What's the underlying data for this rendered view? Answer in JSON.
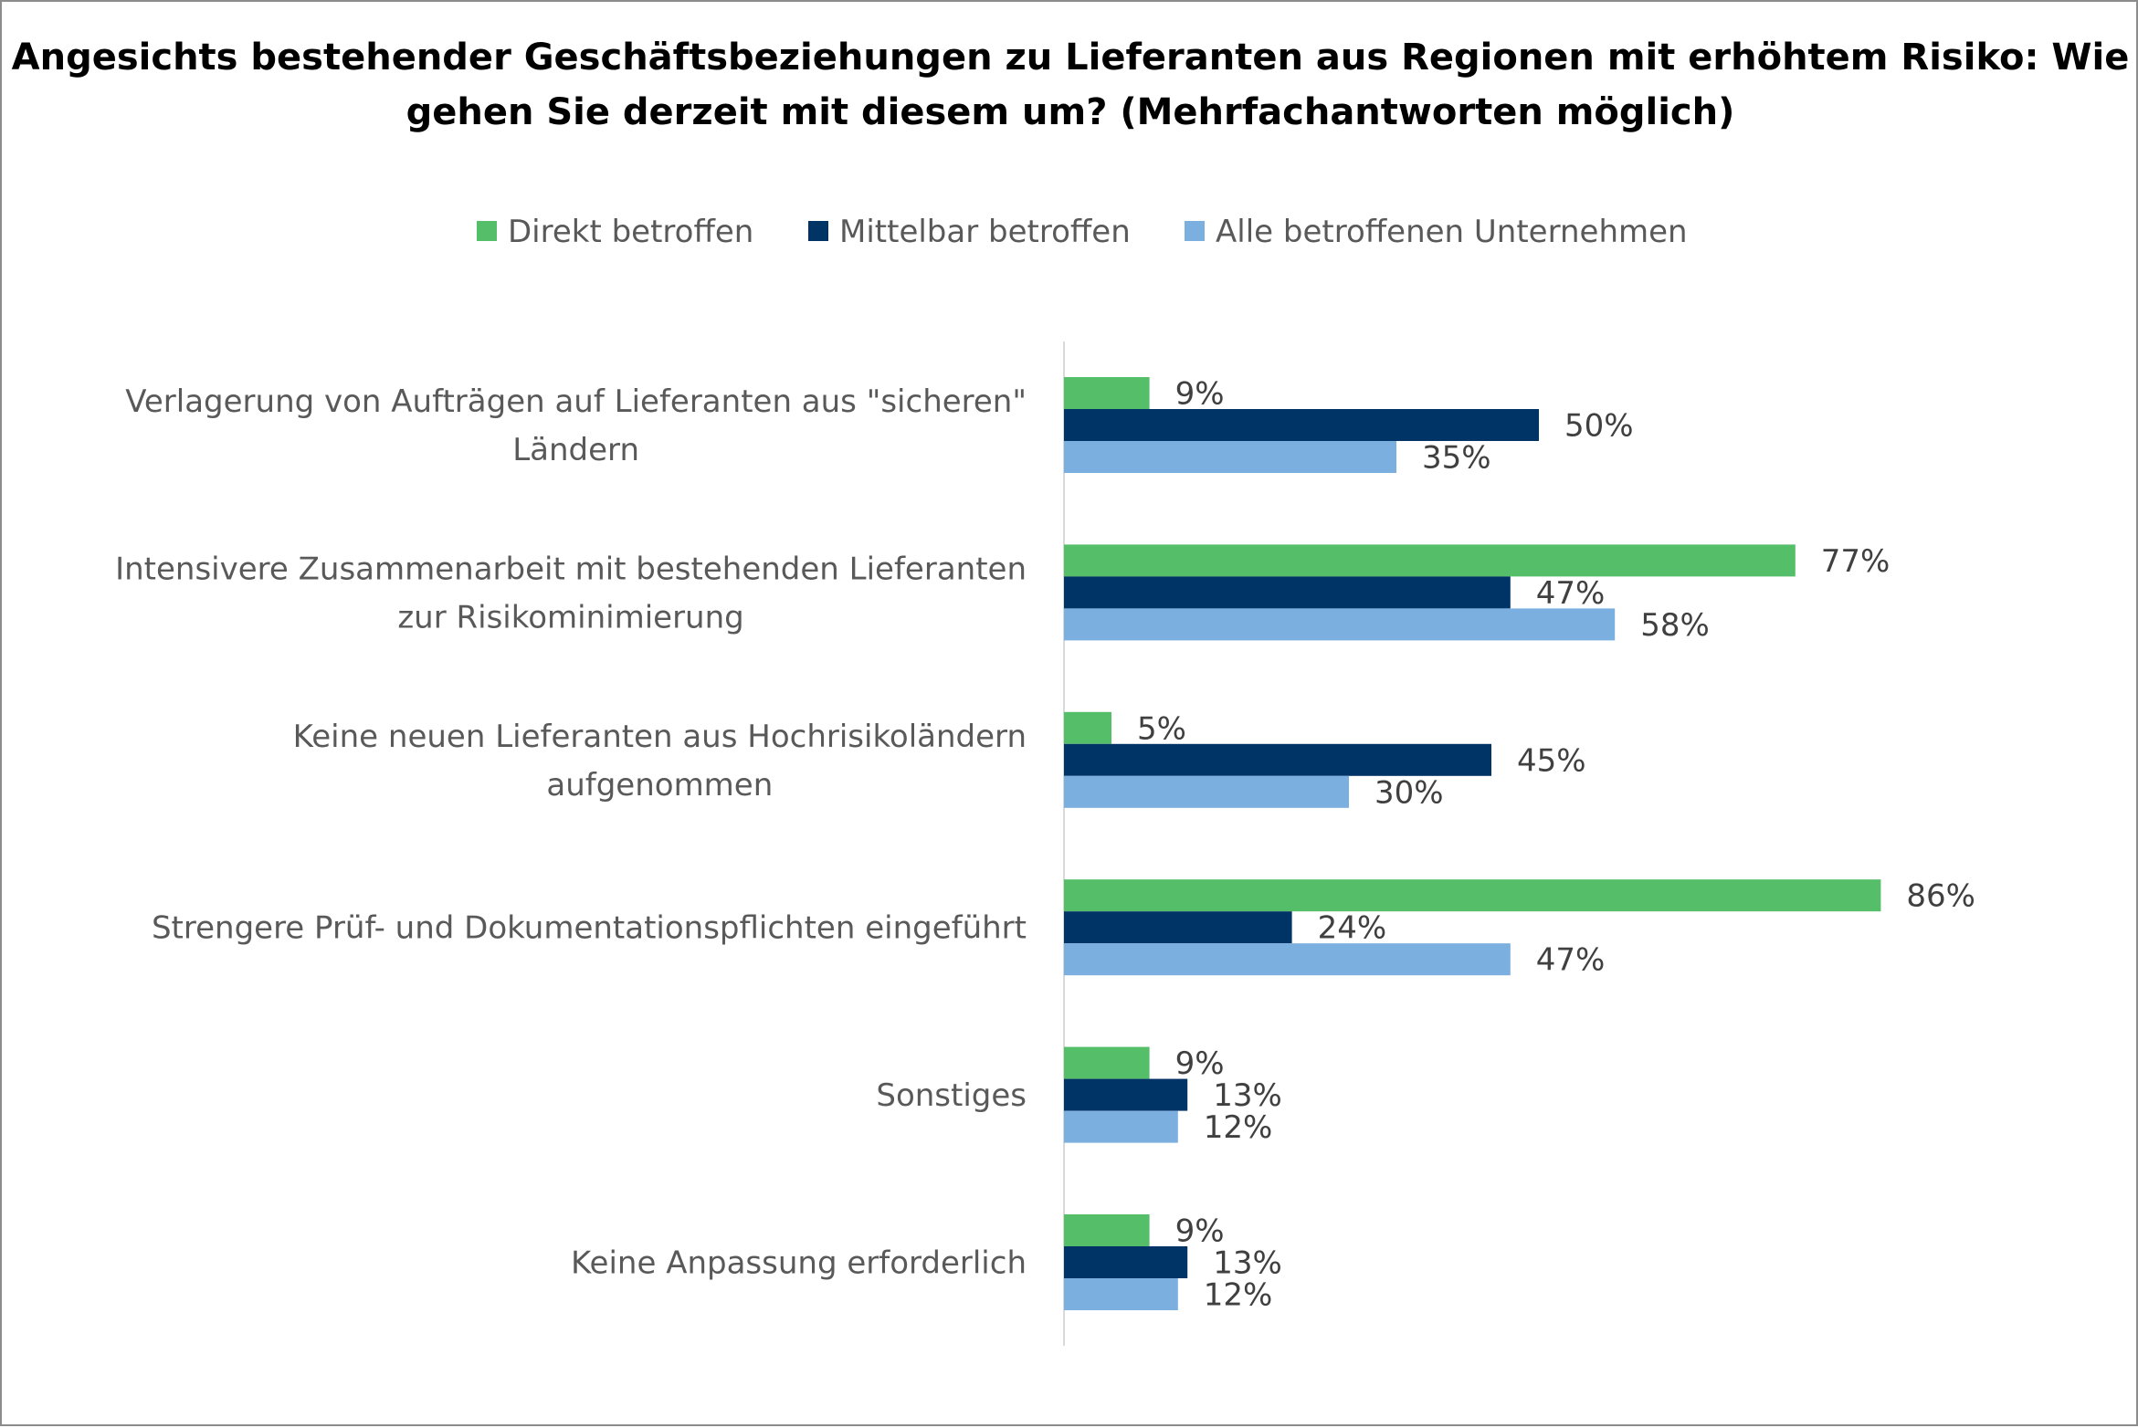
{
  "chart_data": {
    "type": "bar",
    "orientation": "horizontal",
    "title_lines": [
      "Angesichts bestehender Geschäftsbeziehungen zu Lieferanten aus Regionen mit erhöhtem Risiko: Wie",
      "gehen Sie derzeit mit diesem um? (Mehrfachantworten möglich)"
    ],
    "categories": [
      [
        "Verlagerung von Aufträgen auf Lieferanten aus \"sicheren\"",
        "Ländern"
      ],
      [
        "Intensivere Zusammenarbeit mit bestehenden Lieferanten",
        "zur Risikominimierung"
      ],
      [
        "Keine neuen Lieferanten aus Hochrisikoländern",
        "aufgenommen"
      ],
      [
        "Strengere Prüf- und Dokumentationspflichten eingeführt"
      ],
      [
        "Sonstiges"
      ],
      [
        "Keine Anpassung erforderlich"
      ]
    ],
    "series": [
      {
        "name": "Direkt betroffen",
        "color": "#55be69",
        "values": [
          9,
          77,
          5,
          86,
          9,
          9
        ]
      },
      {
        "name": "Mittelbar betroffen",
        "color": "#003366",
        "values": [
          50,
          47,
          45,
          24,
          13,
          13
        ]
      },
      {
        "name": "Alle betroffenen Unternehmen",
        "color": "#7aafe0",
        "values": [
          35,
          58,
          30,
          47,
          12,
          12
        ]
      }
    ],
    "value_suffix": "%",
    "xlim": [
      0,
      100
    ],
    "legend_position": "top",
    "grid": false,
    "x_axis_visible": false
  }
}
